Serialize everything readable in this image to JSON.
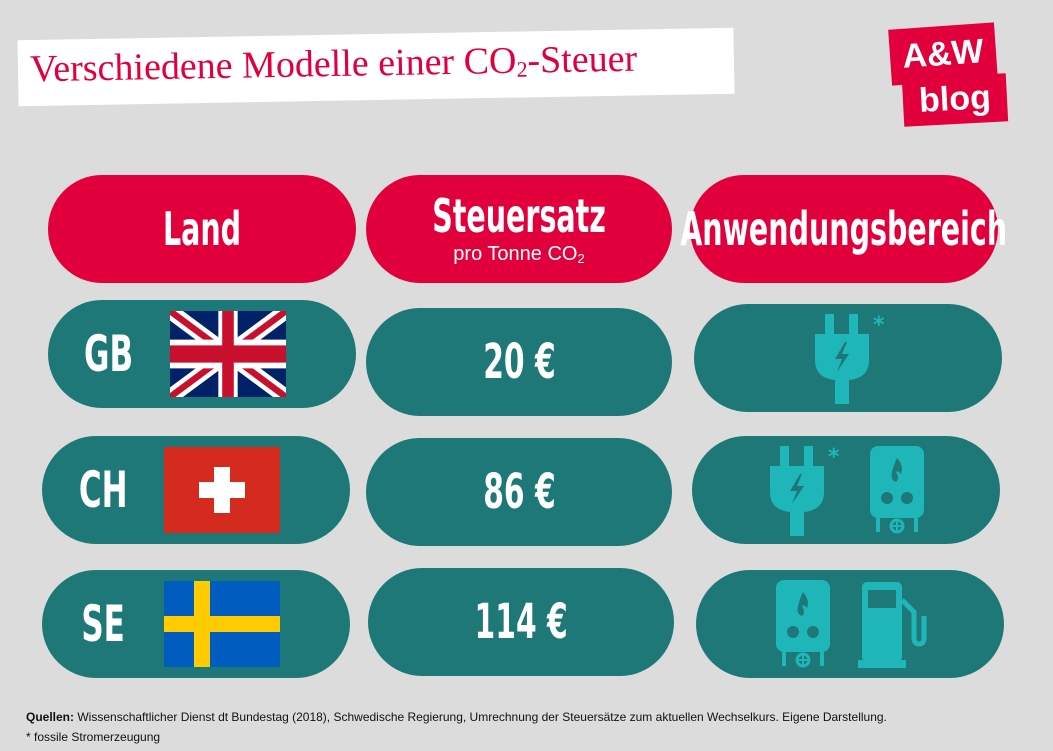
{
  "title": {
    "main": "Verschiedene Modelle einer CO",
    "subscript": "2",
    "suffix": "-Steuer"
  },
  "logo": {
    "line1": "A&W",
    "line2": "blog"
  },
  "headers": {
    "land": "Land",
    "steuersatz": "Steuersatz",
    "steuersatz_sub": "pro Tonne CO",
    "steuersatz_sub_subscript": "2",
    "anwendungsbereich": "Anwendungsbereich"
  },
  "rows": [
    {
      "country": "GB",
      "flag": "united-kingdom-flag",
      "rate": "20 €",
      "scope_icons": [
        "plug-icon"
      ],
      "asterisk": "*"
    },
    {
      "country": "CH",
      "flag": "switzerland-flag",
      "rate": "86 €",
      "scope_icons": [
        "plug-icon",
        "boiler-icon"
      ],
      "asterisk": "*"
    },
    {
      "country": "SE",
      "flag": "sweden-flag",
      "rate": "114 €",
      "scope_icons": [
        "boiler-icon",
        "fuel-pump-icon"
      ]
    }
  ],
  "footer": {
    "sources_label": "Quellen:",
    "sources_text": " Wissenschaftlicher Dienst dt Bundestag (2018), Schwedische Regierung, Umrechnung der Steuersätze zum aktuellen Wechselkurs. Eigene Darstellung.",
    "note": "* fossile Stromerzeugung"
  },
  "colors": {
    "accent": "#e2003c",
    "teal": "#1e7877",
    "icon": "#1fb6ba",
    "background": "#dcdcdc"
  }
}
